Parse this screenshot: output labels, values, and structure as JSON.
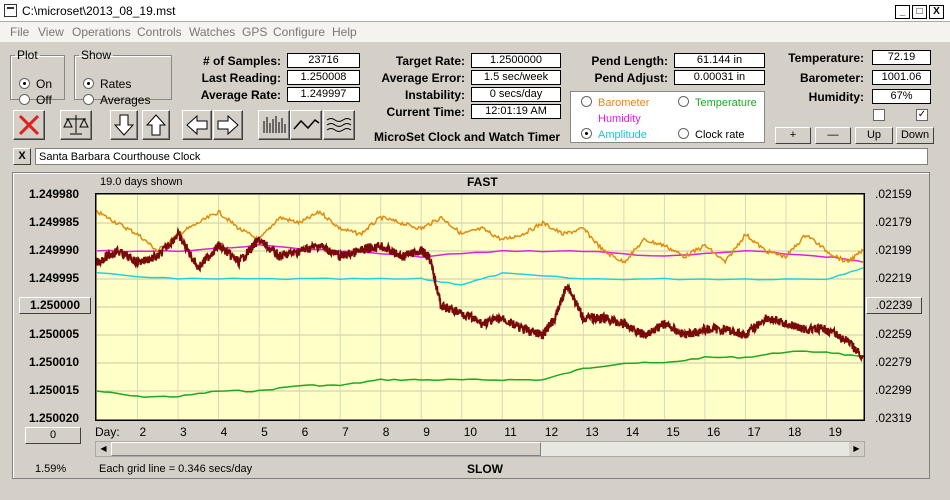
{
  "window": {
    "title": "C:\\microset\\2013_08_19.mst",
    "min": "_",
    "max": "□",
    "close": "X"
  },
  "menu": [
    "File",
    "View",
    "Operations",
    "Controls",
    "Watches",
    "GPS",
    "Configure",
    "Help"
  ],
  "plot_group": {
    "legend": "Plot",
    "on": "On",
    "off": "Off"
  },
  "show_group": {
    "legend": "Show",
    "rates": "Rates",
    "averages": "Averages"
  },
  "stats": {
    "samples_label": "# of Samples:",
    "samples": "23716",
    "last_label": "Last Reading:",
    "last": "1.250008",
    "avg_label": "Average Rate:",
    "avg": "1.249997",
    "target_label": "Target Rate:",
    "target": "1.2500000",
    "err_label": "Average Error:",
    "err": "1.5 sec/week",
    "inst_label": "Instability:",
    "inst": "0 secs/day",
    "time_label": "Current Time:",
    "time": "12:01:19 AM",
    "pend_label": "Pend Length:",
    "pend": "61.144 in",
    "adj_label": "Pend Adjust:",
    "adj": "0.00031 in",
    "temp_label": "Temperature:",
    "temp": "72.19",
    "baro_label": "Barometer:",
    "baro": "1001.06",
    "hum_label": "Humidity:",
    "hum": "67%"
  },
  "app_caption": "MicroSet Clock and Watch Timer",
  "legend_opts": {
    "barometer": "Barometer",
    "temperature": "Temperature",
    "humidity": "Humidity",
    "amplitude": "Amplitude",
    "clock_rate": "Clock rate"
  },
  "colors": {
    "barometer": "#e08a10",
    "temperature": "#1fa81f",
    "humidity": "#e020e0",
    "amplitude": "#20d0e0",
    "clock_rate": "#7a0a0a",
    "plot_bg": "#ffffc8"
  },
  "adjust_buttons": {
    "plus": "+",
    "minus": "—",
    "up": "Up",
    "down": "Down"
  },
  "clock_name": "Santa Barbara Courthouse Clock",
  "clear_btn": "X",
  "chart": {
    "days_shown": "19.0 days shown",
    "fast": "FAST",
    "slow": "SLOW",
    "grid_note": "Each grid line = 0.346 secs/day",
    "percent": "1.59%",
    "center_btn": "1.250000",
    "right_center_btn": ".02239",
    "zero_btn": "0",
    "day_label": "Day:"
  },
  "chart_data": {
    "type": "line",
    "ylabels": [
      "1.249980",
      "1.249985",
      "1.249990",
      "1.249995",
      "1.250000",
      "1.250005",
      "1.250010",
      "1.250015",
      "1.250020"
    ],
    "right_labels": [
      ".02159",
      ".02179",
      ".02199",
      ".02219",
      ".02239",
      ".02259",
      ".02279",
      ".02299",
      ".02319"
    ],
    "xlabel": "Day:",
    "xticks": [
      "2",
      "3",
      "4",
      "5",
      "6",
      "7",
      "8",
      "9",
      "10",
      "11",
      "12",
      "13",
      "14",
      "15",
      "16",
      "17",
      "18",
      "19"
    ],
    "xlim": [
      1,
      19.9
    ],
    "ylim": [
      1.24998,
      1.25002
    ],
    "series": [
      {
        "key": "clock_rate",
        "x": [
          1,
          1.5,
          2,
          2.5,
          3,
          3.5,
          4,
          4.5,
          5,
          5.5,
          6,
          6.5,
          7,
          7.5,
          8,
          8.5,
          9,
          9.2,
          9.5,
          10,
          10.5,
          11,
          11.5,
          12,
          12.3,
          12.6,
          13,
          13.5,
          14,
          14.5,
          15,
          15.5,
          16,
          16.5,
          17,
          17.5,
          18,
          18.5,
          19,
          19.5,
          19.9
        ],
        "y": [
          1.249992,
          1.24999,
          1.249992,
          1.249991,
          1.249987,
          1.249993,
          1.249989,
          1.249992,
          1.249988,
          1.249991,
          1.24999,
          1.249989,
          1.249991,
          1.24999,
          1.249989,
          1.249991,
          1.24999,
          1.249991,
          1.25,
          1.250001,
          1.250003,
          1.250002,
          1.250004,
          1.250005,
          1.250002,
          1.249996,
          1.250002,
          1.250002,
          1.250003,
          1.250005,
          1.250003,
          1.250005,
          1.250004,
          1.250004,
          1.250005,
          1.250002,
          1.250003,
          1.250004,
          1.250004,
          1.250006,
          1.250009
        ]
      },
      {
        "key": "barometer",
        "x": [
          1,
          1.5,
          2,
          2.5,
          3,
          3.5,
          4,
          4.5,
          5,
          5.5,
          6,
          6.5,
          7,
          7.5,
          8,
          8.5,
          9,
          9.5,
          10,
          10.5,
          11,
          11.5,
          12,
          12.5,
          13,
          13.5,
          14,
          14.5,
          15,
          15.5,
          16,
          16.5,
          17,
          17.5,
          18,
          18.5,
          19,
          19.5,
          19.9
        ],
        "y": [
          1.249983,
          1.249985,
          1.249987,
          1.24999,
          1.249987,
          1.249985,
          1.249983,
          1.249986,
          1.249988,
          1.249984,
          1.249985,
          1.249983,
          1.249986,
          1.249987,
          1.249984,
          1.249985,
          1.249986,
          1.249984,
          1.249987,
          1.249986,
          1.249988,
          1.249987,
          1.249985,
          1.249987,
          1.249986,
          1.24999,
          1.249992,
          1.249988,
          1.249989,
          1.249991,
          1.249989,
          1.249992,
          1.249987,
          1.24999,
          1.249991,
          1.249987,
          1.24999,
          1.249992,
          1.24999
        ]
      },
      {
        "key": "humidity",
        "x": [
          1,
          3,
          5,
          7,
          9,
          11,
          13,
          15,
          17,
          19,
          19.9
        ],
        "y": [
          1.24999,
          1.24999,
          1.249989,
          1.24999,
          1.249991,
          1.24999,
          1.24999,
          1.249991,
          1.24999,
          1.249991,
          1.249992
        ]
      },
      {
        "key": "amplitude",
        "x": [
          1,
          3,
          5,
          7,
          9,
          10,
          11,
          13,
          15,
          17,
          19,
          19.9
        ],
        "y": [
          1.249994,
          1.249995,
          1.249995,
          1.249995,
          1.249995,
          1.249996,
          1.249994,
          1.249995,
          1.249995,
          1.249995,
          1.249995,
          1.249993
        ]
      },
      {
        "key": "temperature",
        "x": [
          1,
          2,
          3,
          4,
          5,
          6,
          7,
          8,
          9,
          10,
          11,
          12,
          13,
          14,
          15,
          16,
          17,
          18,
          19,
          19.9
        ],
        "y": [
          1.250015,
          1.250016,
          1.250016,
          1.250015,
          1.250015,
          1.250014,
          1.250014,
          1.250013,
          1.250013,
          1.250013,
          1.250013,
          1.250013,
          1.250011,
          1.25001,
          1.25001,
          1.250009,
          1.250009,
          1.250008,
          1.250008,
          1.250009
        ]
      }
    ]
  }
}
